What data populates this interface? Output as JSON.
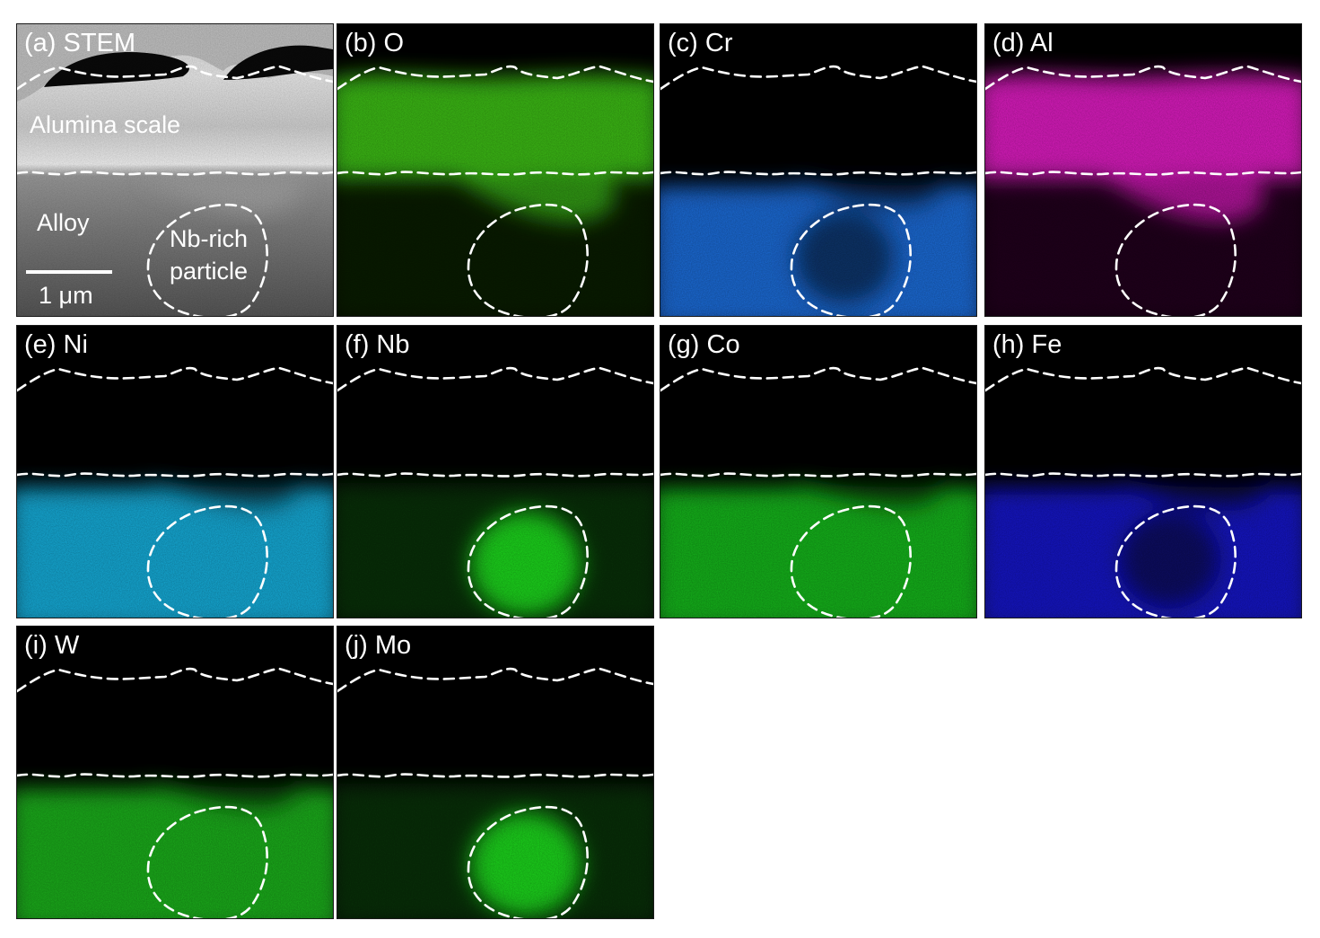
{
  "figure": {
    "panels": [
      {
        "id": "a",
        "label": "(a) STEM",
        "kind": "stem"
      },
      {
        "id": "b",
        "label": "(b) O",
        "kind": "map",
        "element": "O",
        "color": "#3fc418",
        "distribution": "scale"
      },
      {
        "id": "c",
        "label": "(c) Cr",
        "kind": "map",
        "element": "Cr",
        "color": "#1d73e6",
        "distribution": "alloy-depleted"
      },
      {
        "id": "d",
        "label": "(d) Al",
        "kind": "map",
        "element": "Al",
        "color": "#e61ec8",
        "distribution": "scale"
      },
      {
        "id": "e",
        "label": "(e) Ni",
        "kind": "map",
        "element": "Ni",
        "color": "#16b8e8",
        "distribution": "alloy"
      },
      {
        "id": "f",
        "label": "(f) Nb",
        "kind": "map",
        "element": "Nb",
        "color": "#1ed81e",
        "distribution": "particle"
      },
      {
        "id": "g",
        "label": "(g) Co",
        "kind": "map",
        "element": "Co",
        "color": "#19c21c",
        "distribution": "alloy"
      },
      {
        "id": "h",
        "label": "(h) Fe",
        "kind": "map",
        "element": "Fe",
        "color": "#1a1ad4",
        "distribution": "alloy-depleted"
      },
      {
        "id": "i",
        "label": "(i) W",
        "kind": "map",
        "element": "W",
        "color": "#1fbc1f",
        "distribution": "alloy"
      },
      {
        "id": "j",
        "label": "(j) Mo",
        "kind": "map",
        "element": "Mo",
        "color": "#1ed81e",
        "distribution": "particle"
      }
    ],
    "stem_annotations": {
      "scale_region": "Alumina scale",
      "alloy_region": "Alloy",
      "particle_line1": "Nb-rich",
      "particle_line2": "particle",
      "scale_bar": "1 μm"
    }
  }
}
